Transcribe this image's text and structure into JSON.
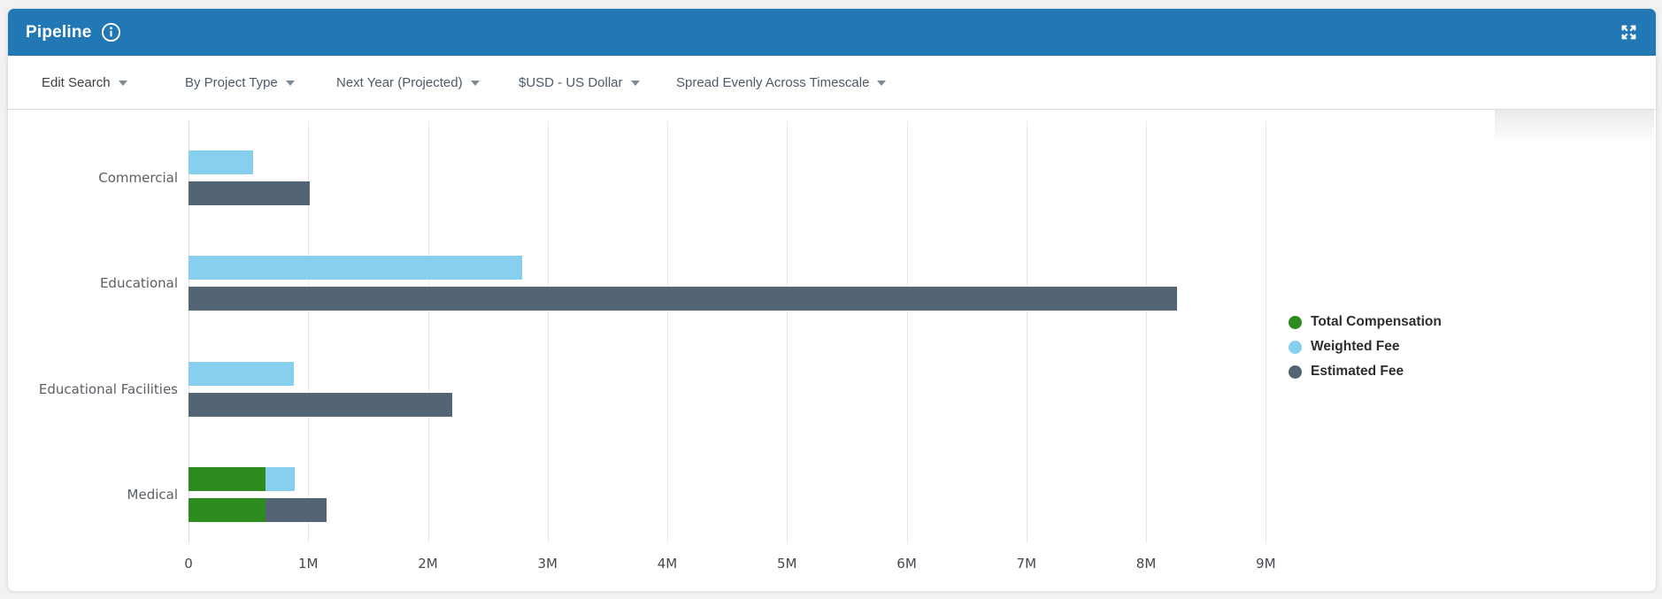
{
  "header": {
    "title": "Pipeline"
  },
  "toolbar": {
    "items": [
      {
        "label": "Edit Search"
      },
      {
        "label": "By Project Type"
      },
      {
        "label": "Next Year (Projected)"
      },
      {
        "label": "$USD - US Dollar"
      },
      {
        "label": "Spread Evenly Across Timescale"
      }
    ]
  },
  "colors": {
    "header_bg": "#2278b4",
    "total_compensation": "#2e8b1f",
    "weighted_fee": "#87cfee",
    "estimated_fee": "#536474"
  },
  "chart_data": {
    "type": "bar",
    "orientation": "horizontal",
    "title": "Pipeline",
    "unit": "USD (millions)",
    "categories": [
      "Commercial",
      "Educational",
      "Educational Facilities",
      "Medical"
    ],
    "series": [
      {
        "name": "Total Compensation",
        "color": "#2e8b1f",
        "values": [
          0,
          0,
          0,
          0.64
        ]
      },
      {
        "name": "Weighted Fee",
        "color": "#87cfee",
        "values": [
          0.54,
          2.79,
          0.88,
          0.25
        ]
      },
      {
        "name": "Estimated Fee",
        "color": "#536474",
        "values": [
          1.01,
          8.26,
          2.2,
          0.51
        ]
      }
    ],
    "stacking": "Each category shows two bars: top bar = Total Compensation + Weighted Fee stacked; bottom bar = Total Compensation + Estimated Fee stacked",
    "x_ticks": [
      "0",
      "1M",
      "2M",
      "3M",
      "4M",
      "5M",
      "6M",
      "7M",
      "8M",
      "9M"
    ],
    "axis_max": 9.19,
    "xlabel": "",
    "ylabel": "",
    "grid": "vertical light gray lines at each 1M",
    "legend_position": "right middle"
  }
}
